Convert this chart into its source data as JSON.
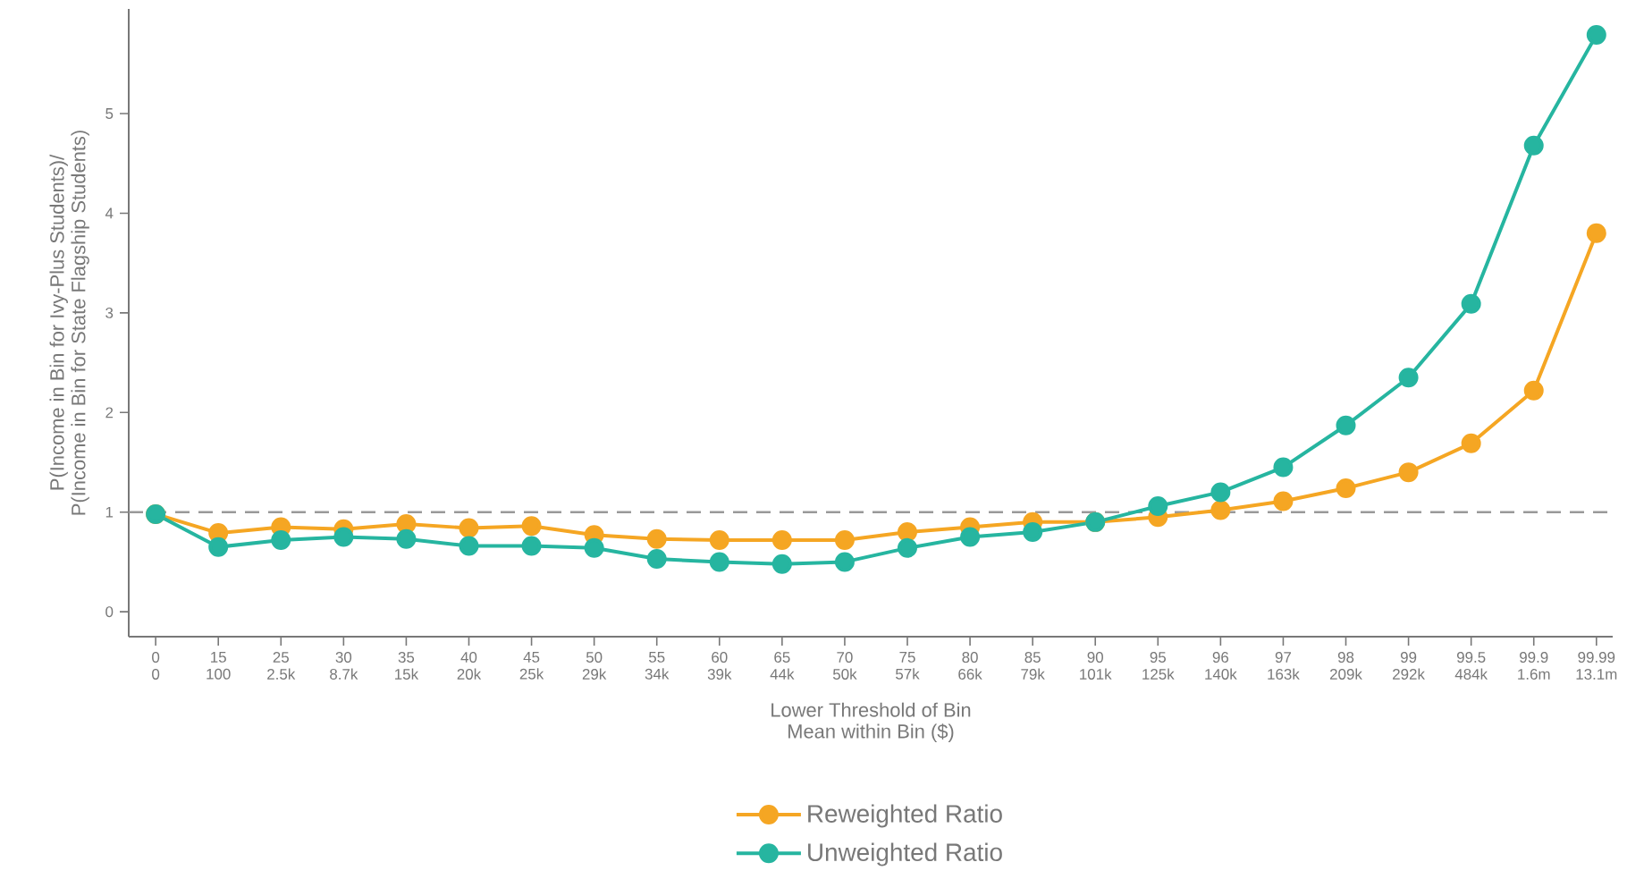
{
  "chart_data": {
    "type": "line",
    "xlabel": "Lower Threshold of Bin\nMean within Bin ($)",
    "ylabel": "P(Income in Bin for Ivy-Plus Students)/\nP(Income in Bin for State Flagship Students)",
    "categories": [
      "0\n0",
      "15\n100",
      "25\n2.5k",
      "30\n8.7k",
      "35\n15k",
      "40\n20k",
      "45\n25k",
      "50\n29k",
      "55\n34k",
      "60\n39k",
      "65\n44k",
      "70\n50k",
      "75\n57k",
      "80\n66k",
      "85\n79k",
      "90\n101k",
      "95\n125k",
      "96\n140k",
      "97\n163k",
      "98\n209k",
      "99\n292k",
      "99.5\n484k",
      "99.9\n1.6m",
      "99.99\n13.1m"
    ],
    "series": [
      {
        "name": "Reweighted Ratio",
        "color": "#f5a623",
        "values": [
          0.98,
          0.79,
          0.85,
          0.83,
          0.88,
          0.84,
          0.86,
          0.77,
          0.73,
          0.72,
          0.72,
          0.72,
          0.8,
          0.85,
          0.9,
          0.9,
          0.95,
          1.02,
          1.11,
          1.24,
          1.4,
          1.69,
          2.22,
          3.8
        ]
      },
      {
        "name": "Unweighted Ratio",
        "color": "#26b5a0",
        "values": [
          0.98,
          0.65,
          0.72,
          0.75,
          0.73,
          0.66,
          0.66,
          0.64,
          0.53,
          0.5,
          0.48,
          0.5,
          0.64,
          0.75,
          0.8,
          0.9,
          1.06,
          1.2,
          1.45,
          1.87,
          2.35,
          3.09,
          4.68,
          5.79
        ]
      }
    ],
    "ylim": [
      -0.25,
      6.05
    ],
    "yticks": [
      0,
      1,
      2,
      3,
      4,
      5
    ],
    "ref_lines": [
      {
        "axis": "y",
        "value": 1,
        "color": "#999999",
        "line_style": "dashed"
      }
    ],
    "grid": false,
    "legend": "bottom",
    "marker": "circle",
    "line_style": "solid"
  }
}
